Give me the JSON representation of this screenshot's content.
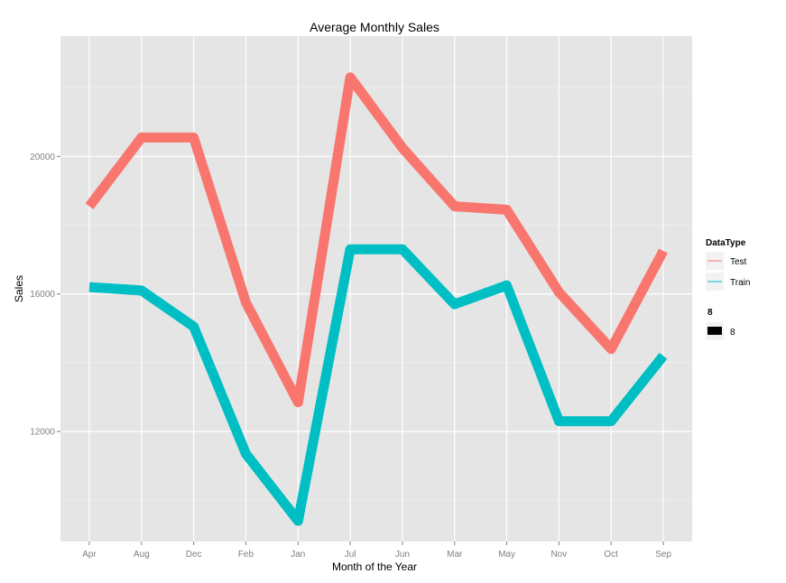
{
  "chart_data": {
    "type": "line",
    "title": "Average Monthly Sales",
    "xlabel": "Month of the Year",
    "ylabel": "Sales",
    "categories": [
      "Apr",
      "Aug",
      "Dec",
      "Feb",
      "Jan",
      "Jul",
      "Jun",
      "Mar",
      "May",
      "Nov",
      "Oct",
      "Sep"
    ],
    "ylim": [
      9400,
      22900
    ],
    "yticks": [
      12000,
      16000,
      20000
    ],
    "ytick_labels": [
      "12000",
      "16000",
      "20000"
    ],
    "grid": true,
    "legend_placement": "right",
    "series": [
      {
        "name": "Test",
        "color": "#F8766D",
        "values": [
          18550,
          20550,
          20550,
          15750,
          12850,
          22300,
          20250,
          18550,
          18450,
          16050,
          14400,
          17250
        ]
      },
      {
        "name": "Train",
        "color": "#00BFC4",
        "values": [
          16200,
          16100,
          15050,
          11350,
          9400,
          17300,
          17300,
          15700,
          16250,
          12300,
          12300,
          14200
        ]
      }
    ],
    "legend": {
      "color_title": "DataType",
      "size_title": "8",
      "size_label": "8"
    }
  }
}
